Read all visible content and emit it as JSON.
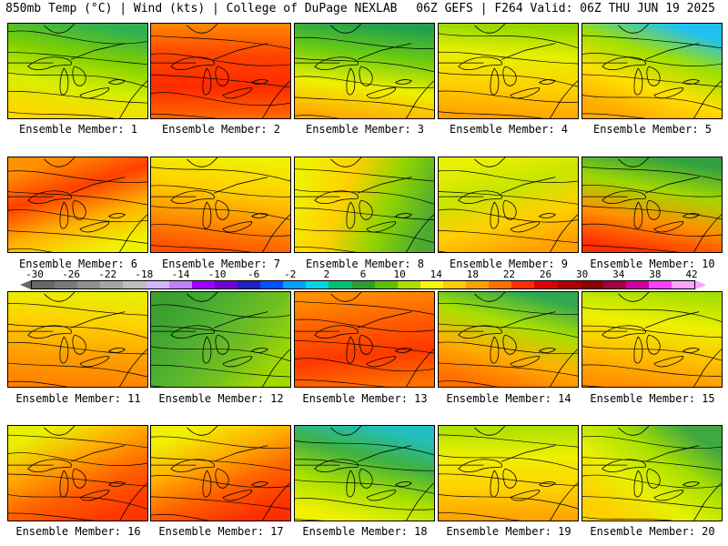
{
  "header": {
    "left": "850mb Temp (°C) | Wind (kts) | College of DuPage NEXLAB",
    "right": "06Z GEFS | F264 Valid: 06Z THU JUN 19 2025"
  },
  "color_scale": {
    "labels": [
      "-30",
      "-26",
      "-22",
      "-18",
      "-14",
      "-10",
      "-6",
      "-2",
      "2",
      "6",
      "10",
      "14",
      "18",
      "22",
      "26",
      "30",
      "34",
      "38",
      "42"
    ],
    "colors": [
      "#666666",
      "#7a7a7a",
      "#909090",
      "#a5a5a5",
      "#bdbdbd",
      "#d8b4ff",
      "#c080ff",
      "#a000ff",
      "#6f00d6",
      "#2020c0",
      "#0050ff",
      "#00a0ff",
      "#00d8e8",
      "#00c070",
      "#2ca02c",
      "#5cc000",
      "#a8e000",
      "#f8f800",
      "#ffd000",
      "#ffa000",
      "#ff7000",
      "#ff3000",
      "#e00000",
      "#b00000",
      "#8b0000",
      "#a00040",
      "#d000a0",
      "#ff40ff",
      "#ffa3ff"
    ]
  },
  "panels": [
    {
      "label": "Ensemble Member: 1",
      "colors": [
        "#30b050",
        "#7fd000",
        "#d8ef00",
        "#ffd600"
      ],
      "angle": -15
    },
    {
      "label": "Ensemble Member: 2",
      "colors": [
        "#ff8800",
        "#ff4400",
        "#ff2a00",
        "#ff6a00"
      ],
      "angle": 0
    },
    {
      "label": "Ensemble Member: 3",
      "colors": [
        "#20a050",
        "#6ccc10",
        "#f0f000",
        "#ffaa00"
      ],
      "angle": -10
    },
    {
      "label": "Ensemble Member: 4",
      "colors": [
        "#8ed600",
        "#e8f000",
        "#ffd000",
        "#ffa000"
      ],
      "angle": -5
    },
    {
      "label": "Ensemble Member: 5",
      "colors": [
        "#20c0f0",
        "#a0e000",
        "#ffe000",
        "#ffaa00"
      ],
      "angle": -25
    },
    {
      "label": "Ensemble Member: 6",
      "colors": [
        "#ff9000",
        "#ff4000",
        "#ffb000",
        "#f0f000"
      ],
      "angle": 25
    },
    {
      "label": "Ensemble Member: 7",
      "colors": [
        "#f0f000",
        "#ffd000",
        "#ff9000",
        "#ff5000"
      ],
      "angle": -10
    },
    {
      "label": "Ensemble Member: 8",
      "colors": [
        "#f0f000",
        "#ffd000",
        "#90d400",
        "#4caa30"
      ],
      "angle": 75
    },
    {
      "label": "Ensemble Member: 9",
      "colors": [
        "#e8f000",
        "#c8e400",
        "#ffd000",
        "#ffa000"
      ],
      "angle": 20
    },
    {
      "label": "Ensemble Member: 10",
      "colors": [
        "#30a040",
        "#a0d800",
        "#ff9000",
        "#ff3000"
      ],
      "angle": -15
    },
    {
      "label": "Ensemble Member: 11",
      "colors": [
        "#e8f000",
        "#ffd000",
        "#ffa000",
        "#ff8000"
      ],
      "angle": -5
    },
    {
      "label": "Ensemble Member: 12",
      "colors": [
        "#3aa030",
        "#50b030",
        "#72c020",
        "#a0d800"
      ],
      "angle": 60
    },
    {
      "label": "Ensemble Member: 13",
      "colors": [
        "#ff9000",
        "#ff6000",
        "#ff3800",
        "#ff7000"
      ],
      "angle": 10
    },
    {
      "label": "Ensemble Member: 14",
      "colors": [
        "#30a850",
        "#a8e000",
        "#ffb000",
        "#ff7000"
      ],
      "angle": -20
    },
    {
      "label": "Ensemble Member: 15",
      "colors": [
        "#a8e000",
        "#f0f000",
        "#ffc000",
        "#ff9000"
      ],
      "angle": -10
    },
    {
      "label": "Ensemble Member: 16",
      "colors": [
        "#e8f000",
        "#ffa800",
        "#ff6000",
        "#ff3800"
      ],
      "angle": 30
    },
    {
      "label": "Ensemble Member: 17",
      "colors": [
        "#f0f000",
        "#ffb000",
        "#ff6000",
        "#ff3000"
      ],
      "angle": 30
    },
    {
      "label": "Ensemble Member: 18",
      "colors": [
        "#20c0c0",
        "#40b040",
        "#a8e000",
        "#f0f000"
      ],
      "angle": -20
    },
    {
      "label": "Ensemble Member: 19",
      "colors": [
        "#a8e000",
        "#f0f000",
        "#ffd000",
        "#ffa000"
      ],
      "angle": 0
    },
    {
      "label": "Ensemble Member: 20",
      "colors": [
        "#40a840",
        "#a8e000",
        "#e8f000",
        "#ffd000"
      ],
      "angle": -45
    }
  ]
}
